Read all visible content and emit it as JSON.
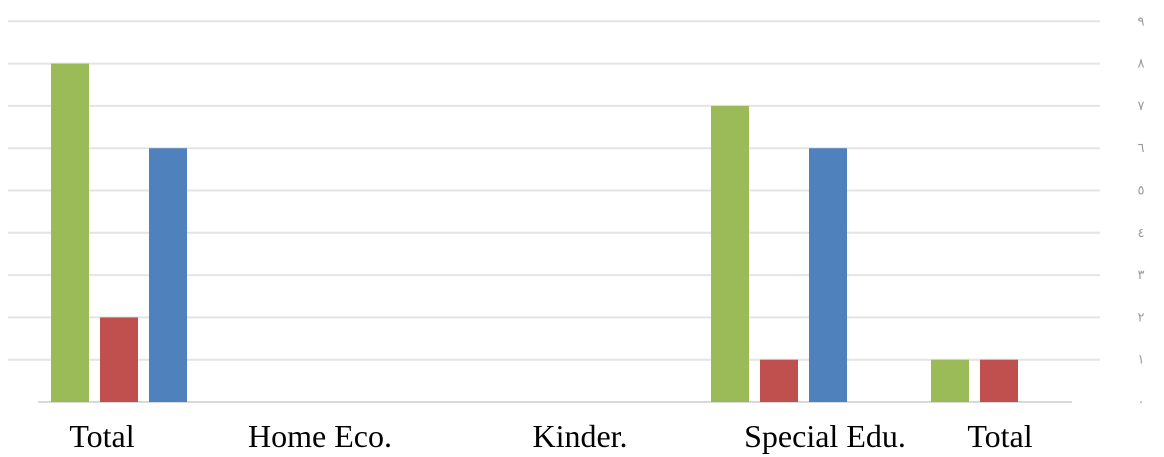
{
  "chart_data": {
    "type": "bar",
    "categories": [
      "Total",
      "Home Eco.",
      "Kinder.",
      "Special Edu.",
      "Total"
    ],
    "series": [
      {
        "color": "#9BBB59",
        "values": [
          8,
          0,
          0,
          7,
          1
        ]
      },
      {
        "color": "#C0504D",
        "values": [
          2,
          0,
          0,
          1,
          1
        ]
      },
      {
        "color": "#4F81BD",
        "values": [
          6,
          0,
          0,
          6,
          0
        ]
      }
    ],
    "y_ticks": [
      "٠",
      "١",
      "٢",
      "٣",
      "٤",
      "٥",
      "٦",
      "٧",
      "٨",
      "٩"
    ],
    "ylim": [
      0,
      9
    ],
    "y_axis_side": "right",
    "grid": true,
    "legend": "none",
    "title": "",
    "xlabel": "",
    "ylabel": ""
  }
}
